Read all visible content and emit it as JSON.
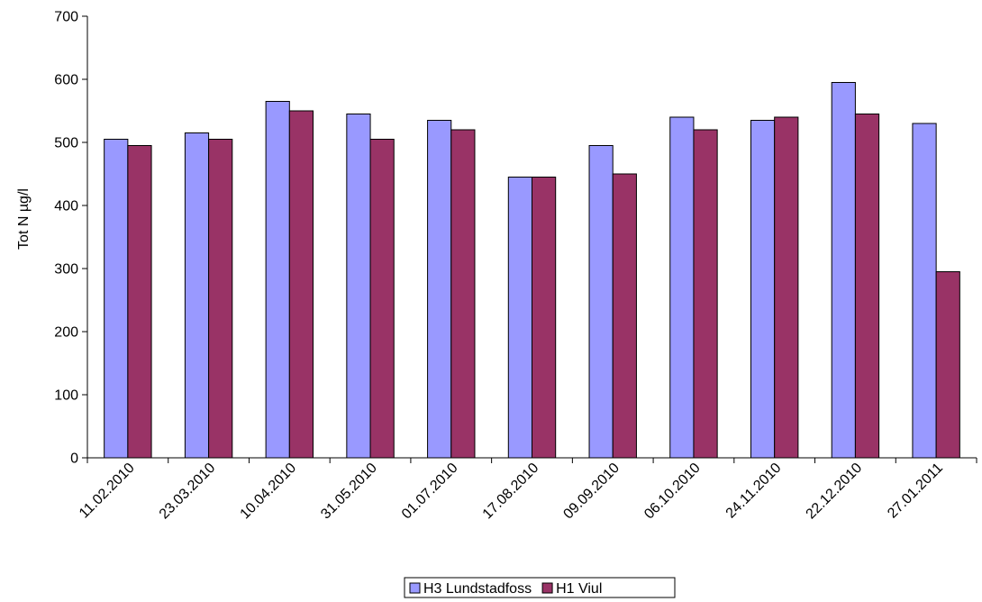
{
  "chart_data": {
    "type": "bar",
    "title": "",
    "xlabel": "",
    "ylabel": "Tot N µg/l",
    "ylim": [
      0,
      700
    ],
    "yticks": [
      0,
      100,
      200,
      300,
      400,
      500,
      600,
      700
    ],
    "grid": false,
    "legend_position": "bottom-center",
    "categories": [
      "11.02.2010",
      "23.03.2010",
      "10.04.2010",
      "31.05.2010",
      "01.07.2010",
      "17.08.2010",
      "09.09.2010",
      "06.10.2010",
      "24.11.2010",
      "22.12.2010",
      "27.01.2011"
    ],
    "series": [
      {
        "name": "H3 Lundstadfoss",
        "color": "#9999ff",
        "values": [
          505,
          515,
          565,
          545,
          535,
          445,
          495,
          540,
          535,
          595,
          530
        ]
      },
      {
        "name": "H1 Viul",
        "color": "#993366",
        "values": [
          495,
          505,
          550,
          505,
          520,
          445,
          450,
          520,
          540,
          545,
          295
        ]
      }
    ]
  }
}
